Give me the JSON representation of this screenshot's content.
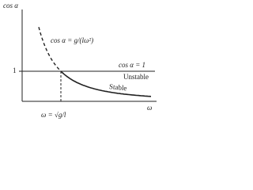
{
  "axes": {
    "y_label": "cos α",
    "x_label": "ω",
    "y_tick": "1"
  },
  "labels": {
    "curve": "cos α = g/(lω²)",
    "line": "cos α = 1",
    "unstable": "Unstable",
    "stable": "Stable",
    "critical": "ω = √g/l"
  }
}
